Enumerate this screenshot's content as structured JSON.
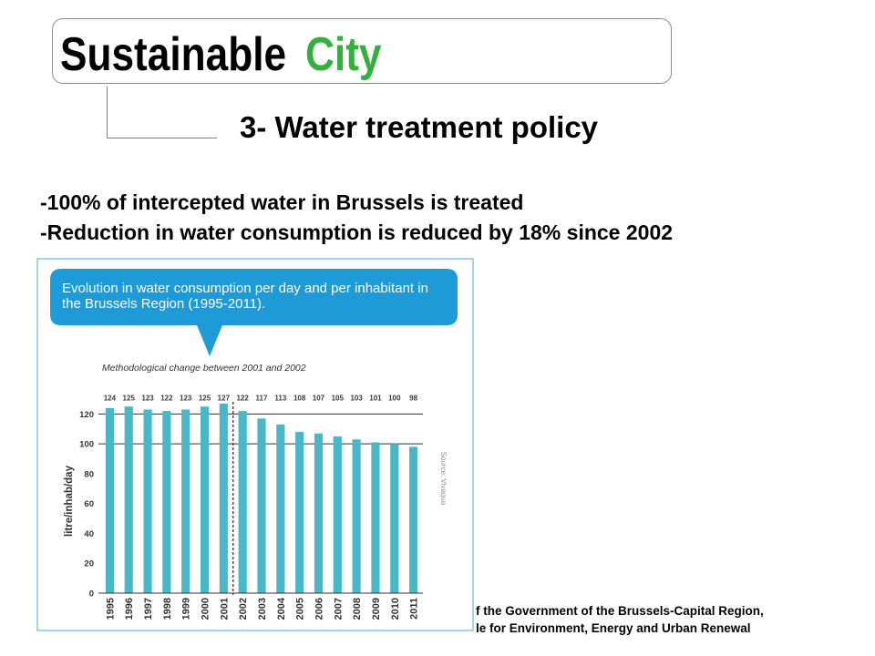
{
  "slide": {
    "title": {
      "word1": "Sustainable",
      "word2": "City"
    },
    "subtitle": "3- Water treatment policy",
    "bullets": [
      "-100% of intercepted water in Brussels is treated",
      "-Reduction in water consumption is reduced by 18% since 2002"
    ],
    "footer": [
      "f the Government of the Brussels-Capital Region,",
      "le for Environment, Energy and Urban Renewal"
    ]
  },
  "colors": {
    "title_accent": "#34b03e",
    "bubble": "#1e9bd7",
    "bars": "#48b8c8",
    "frame": "#a7d3ea"
  },
  "chart_data": {
    "type": "bar",
    "title": "Evolution in water consumption per day and per inhabitant in the Brussels Region (1995-2011).",
    "annotation": "Methodological change between 2001 and 2002",
    "categories": [
      "1995",
      "1996",
      "1997",
      "1998",
      "1999",
      "2000",
      "2001",
      "2002",
      "2003",
      "2004",
      "2005",
      "2006",
      "2007",
      "2008",
      "2009",
      "2010",
      "2011"
    ],
    "values": [
      124,
      125,
      123,
      122,
      123,
      125,
      127,
      122,
      117,
      113,
      108,
      107,
      105,
      103,
      101,
      100,
      98
    ],
    "ylabel": "litre/inhab/day",
    "yticks": [
      0,
      20,
      40,
      60,
      80,
      100,
      120
    ],
    "ylim": [
      0,
      130
    ],
    "gridlines": [
      100,
      120
    ],
    "break_after": 2001,
    "source": "Source: Vivaqua"
  }
}
